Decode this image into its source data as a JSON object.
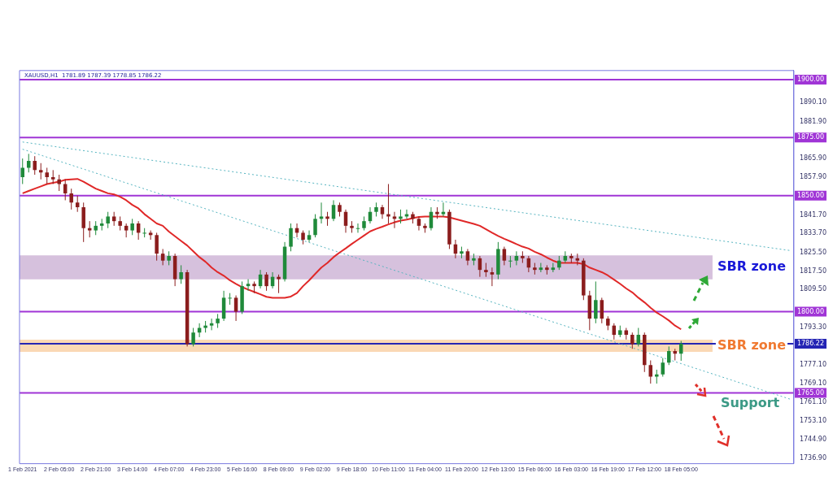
{
  "chart_data": {
    "type": "candlestick",
    "title": "XAUUSD,H1  1781.89 1787.39 1778.85 1786.22",
    "categories": [
      "1 Feb 2021",
      null,
      null,
      null,
      null,
      null,
      "2 Feb 05:00",
      null,
      null,
      null,
      null,
      null,
      "2 Feb 21:00",
      null,
      null,
      null,
      null,
      null,
      "3 Feb 14:00",
      null,
      null,
      null,
      null,
      null,
      "4 Feb 07:00",
      null,
      null,
      null,
      null,
      null,
      "4 Feb 23:00",
      null,
      null,
      null,
      null,
      null,
      "5 Feb 16:00",
      null,
      null,
      null,
      null,
      null,
      "8 Feb 09:00",
      null,
      null,
      null,
      null,
      null,
      "9 Feb 02:00",
      null,
      null,
      null,
      null,
      null,
      "9 Feb 18:00",
      null,
      null,
      null,
      null,
      null,
      "10 Feb 11:00",
      null,
      null,
      null,
      null,
      null,
      "11 Feb 04:00",
      null,
      null,
      null,
      null,
      null,
      "11 Feb 20:00",
      null,
      null,
      null,
      null,
      null,
      "12 Feb 13:00",
      null,
      null,
      null,
      null,
      null,
      "15 Feb 06:00",
      null,
      null,
      null,
      null,
      null,
      "16 Feb 03:00",
      null,
      null,
      null,
      null,
      null,
      "16 Feb 19:00",
      null,
      null,
      null,
      null,
      null,
      "17 Feb 12:00",
      null,
      null,
      null,
      null,
      null,
      "18 Feb 05:00",
      null,
      null,
      null,
      null,
      null,
      null,
      null,
      null,
      null,
      null,
      null,
      null,
      null,
      null,
      null,
      null,
      null,
      null
    ],
    "ohlc": [
      [
        1858,
        1866,
        1855,
        1862
      ],
      [
        1862,
        1868,
        1860,
        1865
      ],
      [
        1865,
        1867,
        1859,
        1861
      ],
      [
        1861,
        1864,
        1857,
        1860
      ],
      [
        1860,
        1862,
        1855,
        1858
      ],
      [
        1858,
        1861,
        1855,
        1857
      ],
      [
        1857,
        1859,
        1852,
        1855
      ],
      [
        1855,
        1857,
        1848,
        1851
      ],
      [
        1851,
        1853,
        1844,
        1847
      ],
      [
        1847,
        1850,
        1843,
        1845
      ],
      [
        1845,
        1847,
        1830,
        1836
      ],
      [
        1836,
        1839,
        1832,
        1835
      ],
      [
        1835,
        1839,
        1833,
        1837
      ],
      [
        1837,
        1840,
        1835,
        1838
      ],
      [
        1838,
        1843,
        1836,
        1841
      ],
      [
        1841,
        1843,
        1837,
        1839
      ],
      [
        1839,
        1841,
        1835,
        1837
      ],
      [
        1837,
        1838,
        1832,
        1835
      ],
      [
        1835,
        1840,
        1833,
        1838
      ],
      [
        1838,
        1839,
        1831,
        1834
      ],
      [
        1834,
        1836,
        1832,
        1834
      ],
      [
        1834,
        1835,
        1831,
        1833
      ],
      [
        1833,
        1834,
        1822,
        1825
      ],
      [
        1825,
        1827,
        1820,
        1822
      ],
      [
        1822,
        1826,
        1820,
        1824
      ],
      [
        1824,
        1825,
        1811,
        1814
      ],
      [
        1814,
        1820,
        1812,
        1817
      ],
      [
        1817,
        1818,
        1785,
        1786
      ],
      [
        1786,
        1793,
        1785,
        1791
      ],
      [
        1791,
        1795,
        1789,
        1793
      ],
      [
        1793,
        1796,
        1791,
        1794
      ],
      [
        1794,
        1797,
        1792,
        1795
      ],
      [
        1795,
        1799,
        1793,
        1797
      ],
      [
        1797,
        1809,
        1796,
        1806
      ],
      [
        1806,
        1808,
        1803,
        1806
      ],
      [
        1806,
        1807,
        1796,
        1800
      ],
      [
        1800,
        1813,
        1799,
        1811
      ],
      [
        1811,
        1814,
        1809,
        1812
      ],
      [
        1812,
        1813,
        1808,
        1811
      ],
      [
        1811,
        1818,
        1810,
        1816
      ],
      [
        1816,
        1817,
        1809,
        1811
      ],
      [
        1811,
        1817,
        1810,
        1815
      ],
      [
        1815,
        1816,
        1808,
        1814
      ],
      [
        1814,
        1830,
        1813,
        1828
      ],
      [
        1828,
        1838,
        1826,
        1836
      ],
      [
        1836,
        1838,
        1832,
        1834
      ],
      [
        1834,
        1835,
        1829,
        1831
      ],
      [
        1831,
        1835,
        1830,
        1833
      ],
      [
        1833,
        1842,
        1832,
        1840
      ],
      [
        1840,
        1847,
        1838,
        1841
      ],
      [
        1841,
        1843,
        1837,
        1840
      ],
      [
        1840,
        1848,
        1839,
        1846
      ],
      [
        1846,
        1847,
        1841,
        1843
      ],
      [
        1843,
        1844,
        1834,
        1837
      ],
      [
        1837,
        1839,
        1834,
        1836
      ],
      [
        1836,
        1838,
        1834,
        1836
      ],
      [
        1836,
        1841,
        1835,
        1839
      ],
      [
        1839,
        1845,
        1838,
        1843
      ],
      [
        1843,
        1847,
        1841,
        1845
      ],
      [
        1845,
        1846,
        1840,
        1842
      ],
      [
        1842,
        1855,
        1838,
        1841
      ],
      [
        1841,
        1843,
        1836,
        1840
      ],
      [
        1840,
        1844,
        1838,
        1841
      ],
      [
        1841,
        1844,
        1840,
        1842
      ],
      [
        1842,
        1843,
        1838,
        1840
      ],
      [
        1840,
        1841,
        1835,
        1837
      ],
      [
        1837,
        1838,
        1834,
        1836
      ],
      [
        1836,
        1845,
        1835,
        1843
      ],
      [
        1843,
        1845,
        1840,
        1842
      ],
      [
        1842,
        1847,
        1841,
        1843
      ],
      [
        1843,
        1844,
        1827,
        1829
      ],
      [
        1829,
        1831,
        1823,
        1825
      ],
      [
        1825,
        1828,
        1823,
        1826
      ],
      [
        1826,
        1827,
        1820,
        1822
      ],
      [
        1822,
        1825,
        1820,
        1823
      ],
      [
        1823,
        1824,
        1815,
        1818
      ],
      [
        1818,
        1821,
        1815,
        1817
      ],
      [
        1817,
        1819,
        1811,
        1816
      ],
      [
        1816,
        1830,
        1814,
        1827
      ],
      [
        1827,
        1828,
        1820,
        1822
      ],
      [
        1822,
        1824,
        1819,
        1822
      ],
      [
        1822,
        1826,
        1820,
        1824
      ],
      [
        1824,
        1826,
        1821,
        1823
      ],
      [
        1823,
        1824,
        1817,
        1819
      ],
      [
        1819,
        1821,
        1816,
        1818
      ],
      [
        1818,
        1821,
        1817,
        1819
      ],
      [
        1819,
        1820,
        1816,
        1818
      ],
      [
        1818,
        1821,
        1817,
        1819
      ],
      [
        1819,
        1824,
        1818,
        1822
      ],
      [
        1822,
        1826,
        1821,
        1824
      ],
      [
        1824,
        1825,
        1821,
        1823
      ],
      [
        1823,
        1825,
        1820,
        1822
      ],
      [
        1822,
        1823,
        1805,
        1807
      ],
      [
        1807,
        1809,
        1792,
        1797
      ],
      [
        1797,
        1813,
        1795,
        1805
      ],
      [
        1805,
        1806,
        1795,
        1797
      ],
      [
        1797,
        1798,
        1792,
        1794
      ],
      [
        1794,
        1795,
        1788,
        1790
      ],
      [
        1790,
        1794,
        1789,
        1792
      ],
      [
        1792,
        1793,
        1788,
        1790
      ],
      [
        1790,
        1791,
        1784,
        1786
      ],
      [
        1786,
        1793,
        1785,
        1790
      ],
      [
        1790,
        1791,
        1774,
        1777
      ],
      [
        1777,
        1779,
        1769,
        1772
      ],
      [
        1772,
        1775,
        1769,
        1773
      ],
      [
        1773,
        1780,
        1772,
        1778
      ],
      [
        1778,
        1785,
        1777,
        1783
      ],
      [
        1783,
        1784,
        1779,
        1781.89
      ],
      [
        1781.89,
        1787.39,
        1778.85,
        1786.22
      ],
      null,
      null,
      null,
      null,
      null,
      null,
      null,
      null,
      null,
      null,
      null,
      null,
      null,
      null,
      null,
      null,
      null,
      null
    ],
    "series": [
      {
        "type": "line",
        "color": "#e02828",
        "values": [
          1851,
          1852,
          1853,
          1854,
          1855,
          1855.5,
          1856,
          1856.8,
          1857,
          1857.2,
          1856,
          1854.5,
          1853,
          1852,
          1851,
          1850.5,
          1849.5,
          1848,
          1846,
          1844.5,
          1842,
          1840,
          1838,
          1837,
          1834.5,
          1832.5,
          1830.5,
          1828.5,
          1826,
          1823.5,
          1821.5,
          1819,
          1817,
          1815.5,
          1813.5,
          1812,
          1810.6,
          1809.5,
          1808.5,
          1807.5,
          1806.4,
          1806,
          1806,
          1806,
          1806.5,
          1808,
          1811,
          1813.5,
          1816.3,
          1819,
          1821,
          1823.5,
          1825.5,
          1827.3,
          1829.2,
          1831,
          1832.8,
          1834.6,
          1835.7,
          1836.6,
          1837.6,
          1838.5,
          1839.2,
          1839.7,
          1840.3,
          1840.8,
          1841,
          1841,
          1841,
          1841,
          1840.6,
          1839.9,
          1839.2,
          1838.5,
          1837.8,
          1837,
          1835.5,
          1834,
          1832.6,
          1831.4,
          1830.3,
          1829.1,
          1828,
          1827.2,
          1825.8,
          1824.7,
          1823.3,
          1822,
          1821,
          1821,
          1821,
          1821,
          1820.5,
          1819,
          1818,
          1817,
          1815.6,
          1813.8,
          1812,
          1810,
          1808.3,
          1806,
          1804,
          1801.7,
          1799.6,
          1798,
          1796.2,
          1794,
          1792.4,
          null,
          null,
          null,
          null,
          null,
          null,
          null,
          null,
          null,
          null,
          null,
          null,
          null,
          null,
          null,
          null,
          null,
          null
        ]
      },
      {
        "type": "line",
        "color": "#56b4c0",
        "line_style": "dotted",
        "values": [
          1873.1,
          null,
          null,
          null,
          null,
          null,
          null,
          null,
          null,
          null,
          null,
          null,
          null,
          null,
          null,
          null,
          null,
          null,
          null,
          null,
          null,
          null,
          null,
          null,
          null,
          null,
          null,
          null,
          null,
          null,
          null,
          null,
          null,
          null,
          null,
          null,
          null,
          null,
          null,
          null,
          null,
          null,
          null,
          null,
          null,
          null,
          null,
          null,
          null,
          null,
          null,
          null,
          null,
          null,
          null,
          null,
          null,
          null,
          null,
          null,
          null,
          null,
          null,
          null,
          null,
          null,
          null,
          null,
          null,
          null,
          null,
          null,
          null,
          null,
          null,
          null,
          null,
          null,
          null,
          null,
          null,
          null,
          null,
          null,
          null,
          null,
          null,
          null,
          null,
          null,
          null,
          null,
          null,
          null,
          null,
          null,
          null,
          null,
          null,
          null,
          null,
          null,
          null,
          null,
          null,
          null,
          null,
          null,
          null,
          null,
          null,
          null,
          null,
          null,
          null,
          null,
          null,
          null,
          null,
          null,
          null,
          null,
          null,
          null,
          null,
          null,
          1826.3
        ]
      },
      {
        "type": "line",
        "color": "#56b4c0",
        "line_style": "dotted",
        "values": [
          1870,
          null,
          null,
          null,
          null,
          null,
          null,
          null,
          null,
          null,
          null,
          null,
          null,
          null,
          null,
          null,
          null,
          null,
          null,
          null,
          null,
          null,
          null,
          null,
          null,
          null,
          null,
          null,
          null,
          null,
          null,
          null,
          null,
          null,
          null,
          null,
          null,
          null,
          null,
          null,
          null,
          null,
          null,
          null,
          null,
          null,
          null,
          null,
          null,
          null,
          null,
          null,
          null,
          null,
          null,
          null,
          null,
          null,
          null,
          null,
          null,
          null,
          null,
          null,
          null,
          null,
          null,
          null,
          null,
          null,
          null,
          null,
          null,
          null,
          null,
          null,
          null,
          null,
          null,
          null,
          null,
          null,
          null,
          null,
          null,
          null,
          null,
          null,
          null,
          null,
          null,
          null,
          null,
          null,
          null,
          null,
          null,
          null,
          null,
          null,
          null,
          null,
          null,
          null,
          null,
          null,
          null,
          null,
          null,
          null,
          null,
          null,
          null,
          null,
          null,
          null,
          null,
          null,
          null,
          null,
          null,
          null,
          null,
          null,
          null,
          null,
          1762.2
        ]
      }
    ],
    "ylim": [
      1734.5,
      1903.9
    ],
    "yticks": [
      {
        "value": 1736.9,
        "label": "1736.90"
      },
      {
        "value": 1744.9,
        "label": "1744.90"
      },
      {
        "value": 1753.1,
        "label": "1753.10"
      },
      {
        "value": 1761.1,
        "label": "1761.10"
      },
      {
        "value": 1769.1,
        "label": "1769.10"
      },
      {
        "value": 1777.1,
        "label": "1777.10"
      },
      {
        "value": 1793.3,
        "label": "1793.30"
      },
      {
        "value": 1809.5,
        "label": "1809.50"
      },
      {
        "value": 1817.5,
        "label": "1817.50"
      },
      {
        "value": 1825.5,
        "label": "1825.50"
      },
      {
        "value": 1833.7,
        "label": "1833.70"
      },
      {
        "value": 1841.7,
        "label": "1841.70"
      },
      {
        "value": 1857.9,
        "label": "1857.90"
      },
      {
        "value": 1865.9,
        "label": "1865.90"
      },
      {
        "value": 1881.9,
        "label": "1881.90"
      },
      {
        "value": 1890.1,
        "label": "1890.10"
      }
    ],
    "ref_lines": [
      {
        "axis": "y",
        "value": 1900,
        "label": "1900.00",
        "color": "#a035d6"
      },
      {
        "axis": "y",
        "value": 1875,
        "label": "1875.00",
        "color": "#a035d6"
      },
      {
        "axis": "y",
        "value": 1850,
        "label": "1850.00",
        "color": "#a035d6"
      },
      {
        "axis": "y",
        "value": 1800,
        "label": "1800.00",
        "color": "#a035d6"
      },
      {
        "axis": "y",
        "value": 1765,
        "label": "1765.00",
        "color": "#a035d6"
      },
      {
        "axis": "y",
        "value": 1786.22,
        "label": "1786.22",
        "color": "#2424b4"
      }
    ],
    "bands": [
      {
        "axis": "y",
        "from": 1813.9,
        "to": 1824.3,
        "label": "SBR zone",
        "color": "#d6c1dd"
      },
      {
        "axis": "y",
        "from": 1782.7,
        "to": 1787.9,
        "label": "SBR zone",
        "color": "#fad8b4"
      }
    ],
    "annotations": [
      {
        "text": "Support",
        "y": 1765
      }
    ]
  }
}
